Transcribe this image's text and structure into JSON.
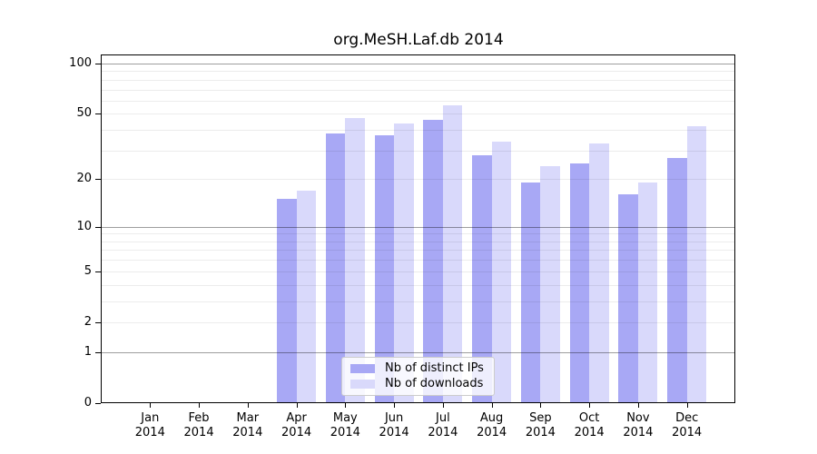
{
  "figure": {
    "title": "org.MeSH.Laf.db 2014"
  },
  "chart_data": {
    "type": "bar",
    "title": "org.MeSH.Laf.db 2014",
    "categories": [
      "Jan",
      "Feb",
      "Mar",
      "Apr",
      "May",
      "Jun",
      "Jul",
      "Aug",
      "Sep",
      "Oct",
      "Nov",
      "Dec"
    ],
    "category_year": "2014",
    "series": [
      {
        "name": "Nb of distinct IPs",
        "key": "distinct-ips",
        "color": "#a8a8f5",
        "values": [
          0,
          0,
          0,
          15,
          38,
          37,
          46,
          28,
          19,
          25,
          16,
          27
        ]
      },
      {
        "name": "Nb of downloads",
        "key": "downloads",
        "color": "#d9d9fb",
        "values": [
          0,
          0,
          0,
          17,
          47,
          44,
          56,
          34,
          24,
          33,
          19,
          42
        ]
      }
    ],
    "yscale": "log10(1+value)",
    "ylim": [
      0,
      112
    ],
    "xlabel": "",
    "ylabel": "",
    "y_tick_values": [
      100,
      50,
      20,
      10,
      5,
      2,
      1,
      0
    ],
    "y_tick_labels": [
      "100",
      "50",
      "20",
      "10",
      "5",
      "2",
      "1",
      "0"
    ],
    "minor_gridline_values": [
      2,
      3,
      4,
      5,
      6,
      7,
      8,
      9,
      20,
      30,
      40,
      50,
      60,
      70,
      80,
      90
    ],
    "decade_gridline_values": [
      1,
      10,
      100
    ],
    "grid": true,
    "legend_position": "bottom-center",
    "legend_entries": [
      "Nb of distinct IPs",
      "Nb of downloads"
    ]
  },
  "colors": {
    "distinct_ips_bar": "#a8a8f5",
    "downloads_bar": "#d9d9fb",
    "grid_minor": "#ececec",
    "grid_decade": "#9e9e9e",
    "axis": "#000000",
    "legend_border": "#cccccc"
  }
}
